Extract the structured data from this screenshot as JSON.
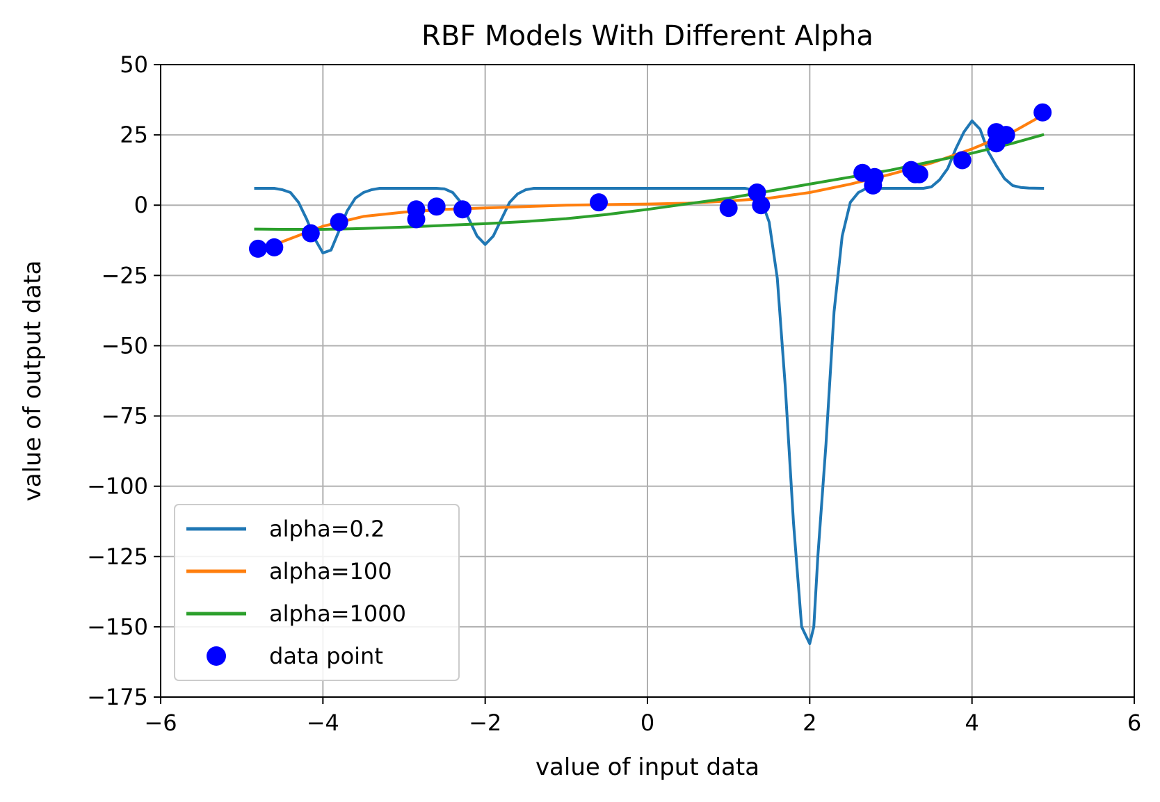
{
  "chart_data": {
    "type": "line",
    "title": "RBF Models With Different Alpha",
    "xlabel": "value of input data",
    "ylabel": "value of output data",
    "xlim": [
      -6,
      6
    ],
    "ylim": [
      -175,
      50
    ],
    "xticks": [
      -6,
      -4,
      -2,
      0,
      2,
      4,
      6
    ],
    "xtick_labels": [
      "−6",
      "−4",
      "−2",
      "0",
      "2",
      "4",
      "6"
    ],
    "yticks": [
      50,
      25,
      0,
      -25,
      -50,
      -75,
      -100,
      -125,
      -150,
      -175
    ],
    "ytick_labels": [
      "50",
      "25",
      "0",
      "−25",
      "−50",
      "−75",
      "−100",
      "−125",
      "−150",
      "−175"
    ],
    "grid": true,
    "legend_position": "lower-left",
    "series": [
      {
        "name": "alpha=0.2",
        "color": "#1f77b4",
        "x": [
          -4.83,
          -4.6,
          -4.5,
          -4.4,
          -4.3,
          -4.2,
          -4.1,
          -4.0,
          -3.9,
          -3.8,
          -3.7,
          -3.6,
          -3.5,
          -3.4,
          -3.3,
          -3.2,
          -3.0,
          -2.8,
          -2.6,
          -2.5,
          -2.4,
          -2.3,
          -2.2,
          -2.1,
          -2.0,
          -1.9,
          -1.8,
          -1.7,
          -1.6,
          -1.5,
          -1.4,
          -1.3,
          -1.0,
          0.0,
          1.0,
          1.2,
          1.3,
          1.4,
          1.5,
          1.6,
          1.7,
          1.8,
          1.9,
          2.0,
          2.05,
          2.1,
          2.2,
          2.3,
          2.4,
          2.5,
          2.6,
          2.7,
          2.8,
          3.0,
          3.4,
          3.5,
          3.6,
          3.7,
          3.8,
          3.9,
          4.0,
          4.1,
          4.2,
          4.3,
          4.4,
          4.5,
          4.6,
          4.7,
          4.87
        ],
        "y": [
          6,
          6,
          5.5,
          4.5,
          1,
          -5,
          -12,
          -17,
          -16,
          -9,
          -2,
          2.5,
          4.5,
          5.5,
          6,
          6,
          6,
          6,
          6,
          5.8,
          4.5,
          1,
          -5,
          -11,
          -14,
          -11,
          -5,
          1,
          4,
          5.5,
          6,
          6,
          6,
          6,
          6,
          6,
          5.5,
          2,
          -6,
          -26,
          -65,
          -113,
          -150,
          -156,
          -150,
          -125,
          -85,
          -38,
          -11,
          1,
          4.5,
          6,
          6,
          6,
          6,
          6.5,
          9,
          13,
          20,
          26,
          30,
          27,
          19,
          14,
          9.5,
          7,
          6.3,
          6.1,
          6
        ]
      },
      {
        "name": "alpha=100",
        "color": "#ff7f0e",
        "x": [
          -4.83,
          -4.5,
          -4.0,
          -3.5,
          -3.0,
          -2.5,
          -2.0,
          -1.5,
          -1.0,
          -0.5,
          0.0,
          0.5,
          1.0,
          1.5,
          2.0,
          2.5,
          3.0,
          3.5,
          4.0,
          4.5,
          4.87
        ],
        "y": [
          -17,
          -13,
          -7.5,
          -4,
          -2.5,
          -1.5,
          -1,
          -0.5,
          0,
          0.2,
          0.4,
          0.7,
          1.5,
          2.5,
          4.5,
          7.5,
          11,
          15,
          20,
          26,
          32
        ]
      },
      {
        "name": "alpha=1000",
        "color": "#2ca02c",
        "x": [
          -4.83,
          -4.5,
          -4.0,
          -3.5,
          -3.0,
          -2.5,
          -2.0,
          -1.5,
          -1.0,
          -0.5,
          0.0,
          0.5,
          1.0,
          1.5,
          2.0,
          2.5,
          3.0,
          3.5,
          4.0,
          4.5,
          4.87
        ],
        "y": [
          -8.5,
          -8.6,
          -8.6,
          -8.3,
          -7.8,
          -7.2,
          -6.6,
          -5.8,
          -4.8,
          -3.3,
          -1.5,
          0.5,
          2.5,
          5,
          7.5,
          10,
          12.5,
          15.5,
          18.5,
          22,
          25
        ]
      }
    ],
    "scatter": {
      "name": "data point",
      "color": "#0000ff",
      "x": [
        -4.8,
        -4.6,
        -4.15,
        -3.8,
        -2.85,
        -2.85,
        -2.6,
        -2.28,
        -0.6,
        1.0,
        1.35,
        1.4,
        2.65,
        2.8,
        2.78,
        3.25,
        3.3,
        3.35,
        3.88,
        4.3,
        4.3,
        4.42,
        4.87
      ],
      "y": [
        -15.5,
        -15,
        -10,
        -6,
        -5,
        -1.5,
        -0.5,
        -1.5,
        1,
        -1,
        4.5,
        0,
        11.5,
        10,
        7,
        12.5,
        11,
        11,
        16,
        26,
        22,
        25,
        33
      ]
    }
  }
}
